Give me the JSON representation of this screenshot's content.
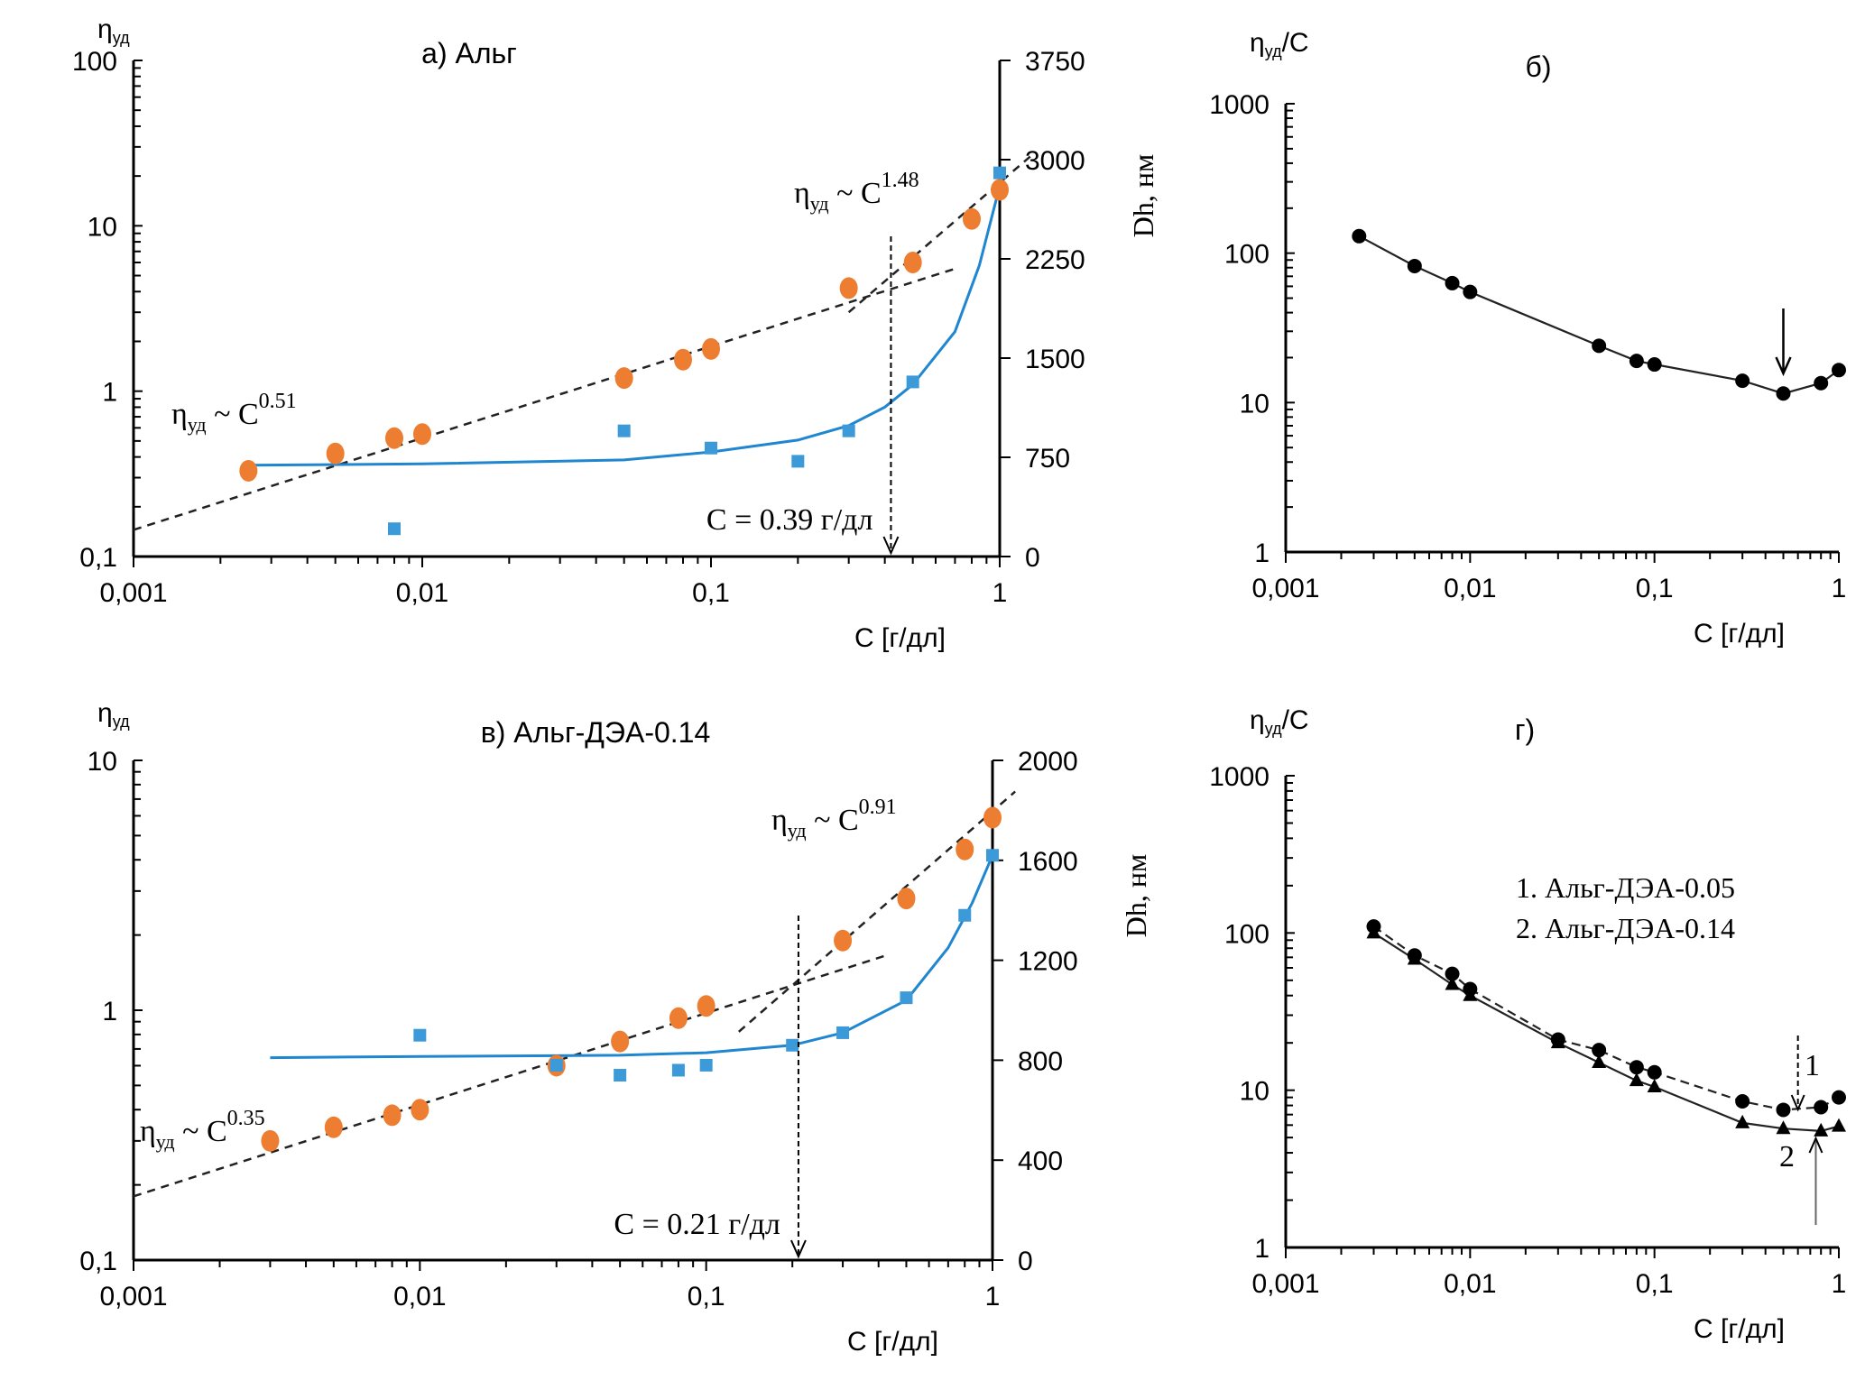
{
  "chart_data": [
    {
      "id": "a",
      "type": "scatter",
      "title": "а) Альг",
      "xlabel": "С [г/дл]",
      "ylabel": "ηуд",
      "y2label": "Dh, нм",
      "xscale": "log",
      "xlim": [
        0.001,
        1
      ],
      "xticks": [
        "0,001",
        "0,01",
        "0,1",
        "1"
      ],
      "yscale": "log",
      "ylim": [
        0.1,
        100
      ],
      "yticks": [
        "0,1",
        "1",
        "10",
        "100"
      ],
      "y2lim": [
        0,
        3750
      ],
      "y2ticks": [
        "0",
        "750",
        "1500",
        "2250",
        "3000",
        "3750"
      ],
      "series": [
        {
          "name": "ηуд",
          "axis": "left",
          "marker": "circle",
          "color": "#ED7D31",
          "x": [
            0.0025,
            0.005,
            0.008,
            0.01,
            0.05,
            0.08,
            0.1,
            0.3,
            0.5,
            0.8,
            1
          ],
          "y": [
            0.33,
            0.42,
            0.52,
            0.55,
            1.2,
            1.55,
            1.8,
            4.2,
            6.0,
            11,
            16.5
          ]
        },
        {
          "name": "Dh",
          "axis": "right",
          "marker": "square",
          "color": "#3C9AD8",
          "x": [
            0.008,
            0.05,
            0.1,
            0.2,
            0.3,
            0.5,
            1
          ],
          "y": [
            210,
            950,
            820,
            720,
            950,
            1320,
            2900
          ]
        }
      ],
      "trend_curve": {
        "color": "#1F86CF",
        "x": [
          0.0025,
          0.01,
          0.05,
          0.1,
          0.2,
          0.3,
          0.4,
          0.5,
          0.7,
          0.85,
          1
        ],
        "y2": [
          690,
          700,
          730,
          790,
          880,
          990,
          1130,
          1300,
          1700,
          2200,
          2800
        ]
      },
      "fit_lines": [
        {
          "label_main": "ηуд ~ C",
          "exponent": "0.51",
          "x": [
            0.001,
            0.7
          ],
          "y": [
            0.145,
            5.5
          ]
        },
        {
          "label_main": "ηуд ~ C",
          "exponent": "1.48",
          "x": [
            0.3,
            1.3
          ],
          "y": [
            3.0,
            27
          ]
        }
      ],
      "annotation": {
        "text": "С = 0.39 г/дл",
        "x": 0.42
      }
    },
    {
      "id": "b",
      "type": "line",
      "title": "б)",
      "xlabel": "С [г/дл]",
      "ylabel": "ηуд/С",
      "xscale": "log",
      "xlim": [
        0.001,
        1
      ],
      "xticks": [
        "0,001",
        "0,01",
        "0,1",
        "1"
      ],
      "yscale": "log",
      "ylim": [
        1,
        1000
      ],
      "yticks": [
        "1",
        "10",
        "100",
        "1000"
      ],
      "series": [
        {
          "name": "ηуд/С",
          "marker": "circle",
          "color": "#000000",
          "x": [
            0.0025,
            0.005,
            0.008,
            0.01,
            0.05,
            0.08,
            0.1,
            0.3,
            0.5,
            0.8,
            1
          ],
          "y": [
            130,
            82,
            63,
            55,
            24,
            19,
            18,
            14,
            11.5,
            13.5,
            16.5
          ]
        }
      ],
      "arrow_x": 0.5
    },
    {
      "id": "v",
      "type": "scatter",
      "title": "в) Альг-ДЭА-0.14",
      "xlabel": "С [г/дл]",
      "ylabel": "ηуд",
      "y2label": "Dh, нм",
      "xscale": "log",
      "xlim": [
        0.001,
        1
      ],
      "xticks": [
        "0,001",
        "0,01",
        "0,1",
        "1"
      ],
      "yscale": "log",
      "ylim": [
        0.1,
        10
      ],
      "yticks": [
        "0,1",
        "1",
        "10"
      ],
      "y2lim": [
        0,
        2000
      ],
      "y2ticks": [
        "0",
        "400",
        "800",
        "1200",
        "1600",
        "2000"
      ],
      "series": [
        {
          "name": "ηуд",
          "axis": "left",
          "marker": "circle",
          "color": "#ED7D31",
          "x": [
            0.003,
            0.005,
            0.008,
            0.01,
            0.03,
            0.05,
            0.08,
            0.1,
            0.3,
            0.5,
            0.8,
            1
          ],
          "y": [
            0.3,
            0.34,
            0.38,
            0.4,
            0.6,
            0.75,
            0.93,
            1.04,
            1.9,
            2.8,
            4.4,
            5.9
          ]
        },
        {
          "name": "Dh",
          "axis": "right",
          "marker": "square",
          "color": "#3C9AD8",
          "x": [
            0.01,
            0.03,
            0.05,
            0.08,
            0.1,
            0.2,
            0.3,
            0.5,
            0.8,
            1
          ],
          "y": [
            900,
            780,
            740,
            760,
            780,
            860,
            910,
            1050,
            1380,
            1620
          ]
        }
      ],
      "trend_curve": {
        "color": "#1F86CF",
        "x": [
          0.003,
          0.01,
          0.05,
          0.1,
          0.2,
          0.3,
          0.5,
          0.7,
          0.85,
          1
        ],
        "y2": [
          810,
          815,
          820,
          830,
          860,
          910,
          1040,
          1250,
          1430,
          1620
        ]
      },
      "fit_lines": [
        {
          "label_main": "ηуд ~ C",
          "exponent": "0.35",
          "x": [
            0.001,
            0.42
          ],
          "y": [
            0.18,
            1.65
          ]
        },
        {
          "label_main": "ηуд ~ C",
          "exponent": "0.91",
          "x": [
            0.13,
            1.2
          ],
          "y": [
            0.82,
            7.5
          ]
        }
      ],
      "annotation": {
        "text": "С = 0.21 г/дл",
        "x": 0.21
      }
    },
    {
      "id": "g",
      "type": "line",
      "title": "г)",
      "xlabel": "С [г/дл]",
      "ylabel": "ηуд/С",
      "xscale": "log",
      "xlim": [
        0.001,
        1
      ],
      "xticks": [
        "0,001",
        "0,01",
        "0,1",
        "1"
      ],
      "yscale": "log",
      "ylim": [
        1,
        1000
      ],
      "yticks": [
        "1",
        "10",
        "100",
        "1000"
      ],
      "legend": [
        "1. Альг-ДЭА-0.05",
        "2. Альг-ДЭА-0.14"
      ],
      "legend_position": "upper-right",
      "series": [
        {
          "name": "1",
          "marker": "circle",
          "line": "dashed",
          "color": "#000000",
          "x": [
            0.003,
            0.005,
            0.008,
            0.01,
            0.03,
            0.05,
            0.08,
            0.1,
            0.3,
            0.5,
            0.8,
            1
          ],
          "y": [
            110,
            72,
            55,
            44,
            21,
            18,
            14,
            13,
            8.5,
            7.5,
            7.8,
            9.0
          ]
        },
        {
          "name": "2",
          "marker": "triangle",
          "line": "solid",
          "color": "#000000",
          "x": [
            0.003,
            0.005,
            0.008,
            0.01,
            0.03,
            0.05,
            0.08,
            0.1,
            0.3,
            0.5,
            0.8,
            1
          ],
          "y": [
            100,
            68,
            47,
            40,
            20,
            15,
            11.5,
            10.5,
            6.2,
            5.7,
            5.5,
            5.9
          ]
        }
      ],
      "curve_labels": [
        "1",
        "2"
      ],
      "arrow_x": [
        0.6,
        0.75
      ]
    }
  ]
}
